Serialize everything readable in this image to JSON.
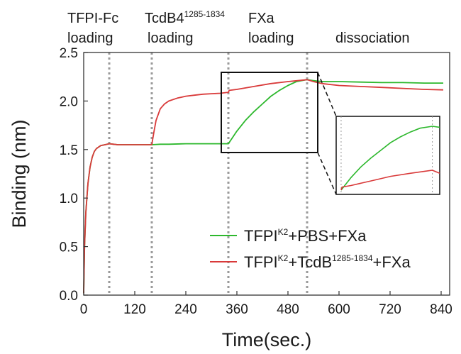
{
  "chart_data": {
    "type": "line",
    "xlabel": "Time(sec.)",
    "ylabel": "Binding (nm)",
    "xlim": [
      0,
      860
    ],
    "ylim": [
      0,
      2.5
    ],
    "xticks": [
      0,
      120,
      240,
      360,
      480,
      600,
      720,
      840
    ],
    "yticks": [
      0.0,
      0.5,
      1.0,
      1.5,
      2.0,
      2.5
    ],
    "xtick_labels": [
      "0",
      "120",
      "240",
      "360",
      "480",
      "600",
      "720",
      "840"
    ],
    "ytick_labels": [
      "0.0",
      "0.5",
      "1.0",
      "1.5",
      "2.0",
      "2.5"
    ],
    "grid": false,
    "legend_position": "lower-right",
    "phase_boundaries": [
      60,
      160,
      340,
      525
    ],
    "phase_labels": [
      {
        "line1": "TFPI-Fc",
        "line2": "loading"
      },
      {
        "line1": "TcdB4",
        "sup": "1285-1834",
        "line2": "loading"
      },
      {
        "line1": "FXa",
        "line2": "loading"
      },
      {
        "line1": "dissociation",
        "line2": ""
      }
    ],
    "series": [
      {
        "legend_pre": "TFPI",
        "legend_sup1": "K2",
        "legend_mid": "+PBS+FXa",
        "legend_sup2": "",
        "legend_post": "",
        "color": "#2db82d",
        "x": [
          0,
          2,
          5,
          10,
          15,
          20,
          25,
          30,
          40,
          50,
          60,
          70,
          80,
          100,
          120,
          140,
          160,
          180,
          200,
          240,
          280,
          320,
          340,
          360,
          380,
          400,
          420,
          440,
          460,
          480,
          500,
          525,
          540,
          560,
          600,
          650,
          700,
          750,
          800,
          845
        ],
        "y": [
          0.02,
          0.5,
          0.85,
          1.15,
          1.32,
          1.42,
          1.48,
          1.51,
          1.54,
          1.55,
          1.56,
          1.555,
          1.55,
          1.55,
          1.55,
          1.55,
          1.55,
          1.555,
          1.555,
          1.56,
          1.56,
          1.56,
          1.56,
          1.69,
          1.8,
          1.89,
          1.97,
          2.05,
          2.11,
          2.16,
          2.2,
          2.22,
          2.21,
          2.2,
          2.2,
          2.195,
          2.19,
          2.19,
          2.185,
          2.185
        ]
      },
      {
        "legend_pre": "TFPI",
        "legend_sup1": "K2",
        "legend_mid": "+TcdB",
        "legend_sup2": "1285-1834",
        "legend_post": "+FXa",
        "color": "#d93a3a",
        "x": [
          0,
          2,
          5,
          10,
          15,
          20,
          25,
          30,
          40,
          50,
          60,
          70,
          80,
          100,
          120,
          140,
          160,
          165,
          170,
          180,
          190,
          200,
          220,
          240,
          260,
          280,
          300,
          320,
          340,
          342,
          360,
          400,
          440,
          480,
          525,
          540,
          560,
          600,
          650,
          700,
          750,
          800,
          845
        ],
        "y": [
          0.02,
          0.5,
          0.85,
          1.15,
          1.32,
          1.42,
          1.48,
          1.51,
          1.54,
          1.55,
          1.56,
          1.555,
          1.55,
          1.55,
          1.55,
          1.55,
          1.55,
          1.68,
          1.8,
          1.92,
          1.97,
          2.0,
          2.03,
          2.05,
          2.06,
          2.07,
          2.075,
          2.08,
          2.09,
          2.11,
          2.12,
          2.15,
          2.18,
          2.2,
          2.22,
          2.2,
          2.18,
          2.16,
          2.15,
          2.14,
          2.13,
          2.12,
          2.115
        ]
      }
    ]
  }
}
